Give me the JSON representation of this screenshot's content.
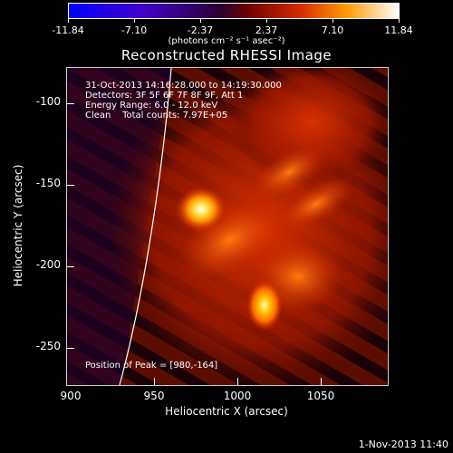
{
  "colorbar": {
    "ticks": [
      "-11.84",
      "-7.10",
      "-2.37",
      "2.37",
      "7.10",
      "11.84"
    ],
    "units": "(photons cm⁻² s⁻¹ asec⁻²)"
  },
  "plot": {
    "title": "Reconstructed RHESSI Image",
    "info": {
      "time_range": "31-Oct-2013 14:16:28.000 to 14:19:30.000",
      "detectors": "Detectors: 3F 5F 6F 7F 8F 9F, Att 1",
      "energy": "Energy Range: 6.0 - 12.0 keV",
      "clean": "Clean    Total counts: 7.97E+05"
    },
    "peak": "Position of Peak = [980,-164]",
    "xlabel": "Heliocentric X (arcsec)",
    "ylabel": "Heliocentric Y (arcsec)",
    "xticks": [
      "900",
      "950",
      "1000",
      "1050"
    ],
    "yticks": [
      "-100",
      "-150",
      "-200",
      "-250"
    ]
  },
  "footer": {
    "timestamp": "1-Nov-2013 11:40"
  }
}
